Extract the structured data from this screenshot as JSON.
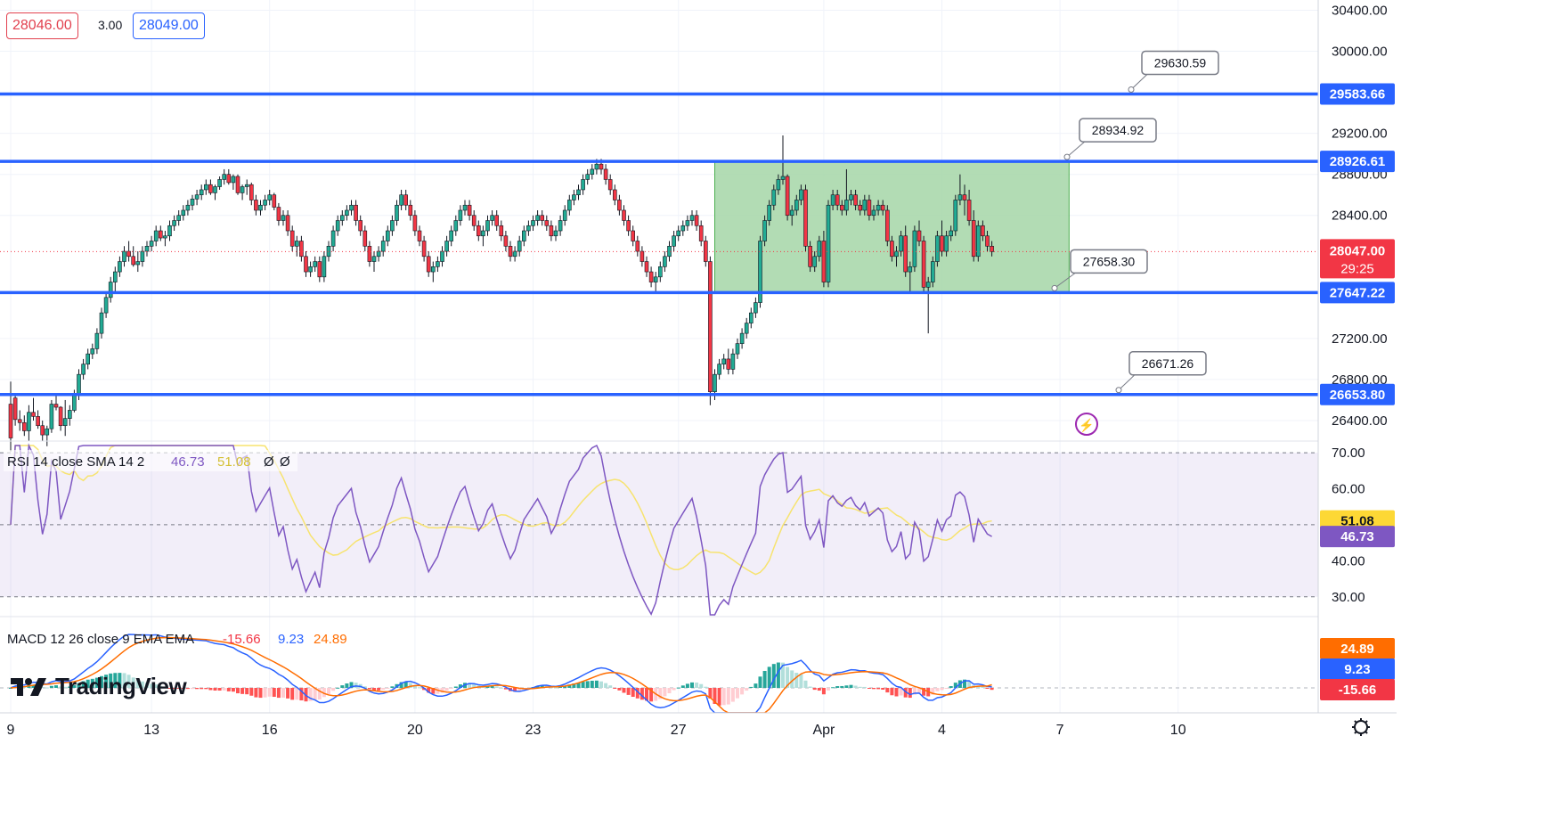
{
  "quote": {
    "bid": "28046.00",
    "spread": "3.00",
    "ask": "28049.00"
  },
  "brand": {
    "name": "TradingView"
  },
  "colors": {
    "up": "#22ab94",
    "down": "#f23645",
    "level": "#2962ff",
    "zone_fill": "#a5d6a7",
    "zone_stroke": "#4caf50",
    "rsi": "#7e57c2",
    "rsi_sma": "#f7e36f",
    "macd": "#2962ff",
    "signal": "#ff6d00"
  },
  "chart_data": {
    "type": "candlestick",
    "price_axis": {
      "range": [
        26200,
        30500
      ],
      "ticks": [
        "30400.00",
        "30000.00",
        "29200.00",
        "28800.00",
        "28400.00",
        "27200.00",
        "26800.00",
        "26400.00"
      ]
    },
    "time_axis": {
      "ticks": [
        "9",
        "13",
        "16",
        "20",
        "23",
        "27",
        "Apr",
        "4",
        "7",
        "10"
      ],
      "tick_index": [
        0,
        31,
        57,
        89,
        115,
        147,
        179,
        205,
        231,
        257
      ]
    },
    "levels": [
      {
        "name": "level-29583",
        "value": 29583.66,
        "axis_label": "29583.66",
        "callout": "29630.59"
      },
      {
        "name": "level-28926",
        "value": 28926.61,
        "axis_label": "28926.61",
        "callout": "28934.92"
      },
      {
        "name": "level-27647",
        "value": 27647.22,
        "axis_label": "27647.22",
        "callout": "27658.30"
      },
      {
        "name": "level-26653",
        "value": 26653.8,
        "axis_label": "26653.80",
        "callout": "26671.26"
      }
    ],
    "range_zone": {
      "from_index": 155,
      "to_index": 233,
      "top": 28926.61,
      "bottom": 27647.22
    },
    "current_price": {
      "value": 28047.0,
      "label": "28047.00",
      "countdown": "29:25"
    },
    "candles": [
      [
        26560,
        26780,
        26100,
        26230
      ],
      [
        26620,
        26650,
        26350,
        26410
      ],
      [
        26410,
        26500,
        26300,
        26380
      ],
      [
        26380,
        26450,
        26250,
        26300
      ],
      [
        26300,
        26550,
        26200,
        26480
      ],
      [
        26480,
        26620,
        26400,
        26440
      ],
      [
        26440,
        26500,
        26320,
        26350
      ],
      [
        26350,
        26400,
        26200,
        26260
      ],
      [
        26260,
        26350,
        26150,
        26320
      ],
      [
        26320,
        26600,
        26280,
        26560
      ],
      [
        26560,
        26650,
        26500,
        26530
      ],
      [
        26530,
        26540,
        26300,
        26350
      ],
      [
        26350,
        26600,
        26250,
        26420
      ],
      [
        26420,
        26550,
        26350,
        26500
      ],
      [
        26500,
        26700,
        26480,
        26650
      ],
      [
        26650,
        26900,
        26600,
        26850
      ],
      [
        26850,
        27000,
        26800,
        26950
      ],
      [
        26950,
        27100,
        26900,
        27050
      ],
      [
        27050,
        27150,
        27000,
        27100
      ],
      [
        27100,
        27300,
        27050,
        27250
      ],
      [
        27250,
        27500,
        27200,
        27450
      ],
      [
        27450,
        27650,
        27400,
        27600
      ],
      [
        27600,
        27800,
        27550,
        27750
      ],
      [
        27750,
        27900,
        27650,
        27850
      ],
      [
        27850,
        28000,
        27800,
        27950
      ],
      [
        27950,
        28100,
        27900,
        28050
      ],
      [
        28050,
        28150,
        27950,
        28000
      ],
      [
        28000,
        28100,
        27900,
        27920
      ],
      [
        27920,
        28050,
        27850,
        27950
      ],
      [
        27950,
        28100,
        27900,
        28050
      ],
      [
        28050,
        28150,
        28000,
        28100
      ],
      [
        28100,
        28200,
        28050,
        28150
      ],
      [
        28150,
        28300,
        28100,
        28250
      ],
      [
        28250,
        28300,
        28150,
        28180
      ],
      [
        28180,
        28250,
        28100,
        28200
      ],
      [
        28200,
        28350,
        28150,
        28300
      ],
      [
        28300,
        28400,
        28250,
        28350
      ],
      [
        28350,
        28450,
        28300,
        28400
      ],
      [
        28400,
        28500,
        28350,
        28450
      ],
      [
        28450,
        28550,
        28400,
        28500
      ],
      [
        28500,
        28600,
        28450,
        28560
      ],
      [
        28560,
        28650,
        28500,
        28600
      ],
      [
        28600,
        28700,
        28550,
        28650
      ],
      [
        28650,
        28750,
        28600,
        28700
      ],
      [
        28700,
        28750,
        28600,
        28620
      ],
      [
        28620,
        28700,
        28550,
        28680
      ],
      [
        28680,
        28780,
        28650,
        28750
      ],
      [
        28750,
        28850,
        28700,
        28800
      ],
      [
        28800,
        28850,
        28700,
        28720
      ],
      [
        28720,
        28800,
        28650,
        28780
      ],
      [
        28780,
        28800,
        28600,
        28620
      ],
      [
        28620,
        28700,
        28550,
        28680
      ],
      [
        28680,
        28750,
        28600,
        28700
      ],
      [
        28700,
        28720,
        28500,
        28550
      ],
      [
        28550,
        28600,
        28400,
        28450
      ],
      [
        28450,
        28550,
        28400,
        28500
      ],
      [
        28500,
        28600,
        28450,
        28550
      ],
      [
        28550,
        28650,
        28500,
        28600
      ],
      [
        28600,
        28620,
        28450,
        28480
      ],
      [
        28480,
        28520,
        28300,
        28350
      ],
      [
        28350,
        28450,
        28300,
        28400
      ],
      [
        28400,
        28450,
        28200,
        28250
      ],
      [
        28250,
        28300,
        28050,
        28100
      ],
      [
        28100,
        28200,
        28000,
        28150
      ],
      [
        28150,
        28200,
        27950,
        28000
      ],
      [
        28000,
        28050,
        27800,
        27850
      ],
      [
        27850,
        27950,
        27800,
        27900
      ],
      [
        27900,
        28000,
        27850,
        27950
      ],
      [
        27950,
        28000,
        27750,
        27800
      ],
      [
        27800,
        28050,
        27750,
        28000
      ],
      [
        28000,
        28150,
        27950,
        28100
      ],
      [
        28100,
        28300,
        28050,
        28250
      ],
      [
        28250,
        28400,
        28200,
        28350
      ],
      [
        28350,
        28450,
        28300,
        28400
      ],
      [
        28400,
        28500,
        28350,
        28450
      ],
      [
        28450,
        28550,
        28400,
        28500
      ],
      [
        28500,
        28550,
        28300,
        28350
      ],
      [
        28350,
        28400,
        28200,
        28250
      ],
      [
        28250,
        28300,
        28050,
        28100
      ],
      [
        28100,
        28150,
        27900,
        27950
      ],
      [
        27950,
        28050,
        27850,
        28000
      ],
      [
        28000,
        28100,
        27950,
        28050
      ],
      [
        28050,
        28200,
        28000,
        28150
      ],
      [
        28150,
        28300,
        28100,
        28250
      ],
      [
        28250,
        28400,
        28200,
        28350
      ],
      [
        28350,
        28550,
        28300,
        28500
      ],
      [
        28500,
        28650,
        28450,
        28600
      ],
      [
        28600,
        28650,
        28450,
        28500
      ],
      [
        28500,
        28550,
        28350,
        28400
      ],
      [
        28400,
        28450,
        28200,
        28250
      ],
      [
        28250,
        28300,
        28100,
        28150
      ],
      [
        28150,
        28200,
        27950,
        28000
      ],
      [
        28000,
        28050,
        27800,
        27850
      ],
      [
        27850,
        27950,
        27750,
        27900
      ],
      [
        27900,
        28000,
        27850,
        27950
      ],
      [
        27950,
        28100,
        27900,
        28050
      ],
      [
        28050,
        28200,
        28000,
        28150
      ],
      [
        28150,
        28300,
        28100,
        28250
      ],
      [
        28250,
        28400,
        28200,
        28350
      ],
      [
        28350,
        28500,
        28300,
        28450
      ],
      [
        28450,
        28550,
        28400,
        28500
      ],
      [
        28500,
        28550,
        28350,
        28400
      ],
      [
        28400,
        28450,
        28250,
        28300
      ],
      [
        28300,
        28350,
        28150,
        28200
      ],
      [
        28200,
        28300,
        28100,
        28250
      ],
      [
        28250,
        28400,
        28200,
        28350
      ],
      [
        28350,
        28450,
        28300,
        28400
      ],
      [
        28400,
        28450,
        28250,
        28300
      ],
      [
        28300,
        28350,
        28150,
        28200
      ],
      [
        28200,
        28250,
        28050,
        28100
      ],
      [
        28100,
        28150,
        27950,
        28000
      ],
      [
        28000,
        28100,
        27950,
        28050
      ],
      [
        28050,
        28200,
        28000,
        28150
      ],
      [
        28150,
        28300,
        28100,
        28250
      ],
      [
        28250,
        28350,
        28200,
        28300
      ],
      [
        28300,
        28400,
        28250,
        28350
      ],
      [
        28350,
        28450,
        28300,
        28400
      ],
      [
        28400,
        28450,
        28300,
        28350
      ],
      [
        28350,
        28400,
        28250,
        28300
      ],
      [
        28300,
        28350,
        28150,
        28200
      ],
      [
        28200,
        28300,
        28150,
        28250
      ],
      [
        28250,
        28400,
        28200,
        28350
      ],
      [
        28350,
        28500,
        28300,
        28450
      ],
      [
        28450,
        28600,
        28400,
        28550
      ],
      [
        28550,
        28650,
        28500,
        28600
      ],
      [
        28600,
        28700,
        28550,
        28650
      ],
      [
        28650,
        28800,
        28600,
        28750
      ],
      [
        28750,
        28850,
        28700,
        28800
      ],
      [
        28800,
        28900,
        28750,
        28850
      ],
      [
        28850,
        28950,
        28800,
        28900
      ],
      [
        28900,
        28950,
        28800,
        28850
      ],
      [
        28850,
        28900,
        28700,
        28750
      ],
      [
        28750,
        28800,
        28600,
        28650
      ],
      [
        28650,
        28700,
        28500,
        28550
      ],
      [
        28550,
        28600,
        28400,
        28450
      ],
      [
        28450,
        28500,
        28300,
        28350
      ],
      [
        28350,
        28400,
        28200,
        28250
      ],
      [
        28250,
        28300,
        28100,
        28150
      ],
      [
        28150,
        28200,
        28000,
        28050
      ],
      [
        28050,
        28100,
        27900,
        27950
      ],
      [
        27950,
        28000,
        27800,
        27850
      ],
      [
        27850,
        27900,
        27700,
        27750
      ],
      [
        27750,
        27850,
        27650,
        27800
      ],
      [
        27800,
        27950,
        27750,
        27900
      ],
      [
        27900,
        28050,
        27850,
        28000
      ],
      [
        28000,
        28150,
        27950,
        28100
      ],
      [
        28100,
        28250,
        28050,
        28200
      ],
      [
        28200,
        28300,
        28150,
        28250
      ],
      [
        28250,
        28350,
        28200,
        28300
      ],
      [
        28300,
        28400,
        28250,
        28350
      ],
      [
        28350,
        28450,
        28300,
        28400
      ],
      [
        28400,
        28450,
        28250,
        28300
      ],
      [
        28300,
        28350,
        28100,
        28150
      ],
      [
        28150,
        28200,
        27900,
        27950
      ],
      [
        27950,
        28000,
        26550,
        26680
      ],
      [
        26680,
        26900,
        26600,
        26850
      ],
      [
        26850,
        27000,
        26800,
        26950
      ],
      [
        26950,
        27050,
        26900,
        27000
      ],
      [
        27000,
        27100,
        26850,
        26900
      ],
      [
        26900,
        27100,
        26850,
        27050
      ],
      [
        27050,
        27200,
        27000,
        27150
      ],
      [
        27150,
        27300,
        27100,
        27250
      ],
      [
        27250,
        27400,
        27200,
        27350
      ],
      [
        27350,
        27500,
        27300,
        27450
      ],
      [
        27450,
        27600,
        27400,
        27550
      ],
      [
        27550,
        28200,
        27500,
        28150
      ],
      [
        28150,
        28400,
        28100,
        28350
      ],
      [
        28350,
        28550,
        28300,
        28500
      ],
      [
        28500,
        28700,
        28450,
        28650
      ],
      [
        28650,
        28800,
        28600,
        28750
      ],
      [
        28750,
        29180,
        28700,
        28780
      ],
      [
        28780,
        28800,
        28350,
        28400
      ],
      [
        28400,
        28500,
        28300,
        28450
      ],
      [
        28450,
        28600,
        28400,
        28550
      ],
      [
        28550,
        28700,
        28500,
        28650
      ],
      [
        28650,
        28700,
        28050,
        28100
      ],
      [
        28100,
        28150,
        27850,
        27900
      ],
      [
        27900,
        28050,
        27850,
        28000
      ],
      [
        28000,
        28200,
        27950,
        28150
      ],
      [
        28150,
        28250,
        27700,
        27750
      ],
      [
        27750,
        28550,
        27700,
        28500
      ],
      [
        28500,
        28650,
        28450,
        28600
      ],
      [
        28600,
        28650,
        28450,
        28500
      ],
      [
        28500,
        28550,
        28400,
        28450
      ],
      [
        28450,
        28850,
        28400,
        28550
      ],
      [
        28550,
        28650,
        28500,
        28600
      ],
      [
        28600,
        28650,
        28450,
        28500
      ],
      [
        28500,
        28550,
        28400,
        28450
      ],
      [
        28450,
        28600,
        28400,
        28550
      ],
      [
        28550,
        28600,
        28350,
        28400
      ],
      [
        28400,
        28500,
        28350,
        28450
      ],
      [
        28450,
        28550,
        28400,
        28500
      ],
      [
        28500,
        28550,
        28400,
        28450
      ],
      [
        28450,
        28500,
        28100,
        28150
      ],
      [
        28150,
        28200,
        27950,
        28000
      ],
      [
        28000,
        28100,
        27900,
        28050
      ],
      [
        28050,
        28250,
        28000,
        28200
      ],
      [
        28200,
        28300,
        27800,
        27850
      ],
      [
        27850,
        27950,
        27650,
        27900
      ],
      [
        27900,
        28300,
        27850,
        28250
      ],
      [
        28250,
        28350,
        28100,
        28150
      ],
      [
        28150,
        28200,
        27650,
        27700
      ],
      [
        27700,
        27800,
        27250,
        27750
      ],
      [
        27750,
        28000,
        27700,
        27950
      ],
      [
        27950,
        28250,
        27900,
        28200
      ],
      [
        28200,
        28350,
        28000,
        28050
      ],
      [
        28050,
        28250,
        28000,
        28200
      ],
      [
        28200,
        28300,
        28150,
        28250
      ],
      [
        28250,
        28600,
        28200,
        28550
      ],
      [
        28550,
        28800,
        28500,
        28600
      ],
      [
        28600,
        28700,
        28400,
        28550
      ],
      [
        28550,
        28650,
        28300,
        28350
      ],
      [
        28350,
        28450,
        27950,
        28000
      ],
      [
        28000,
        28350,
        27950,
        28300
      ],
      [
        28300,
        28350,
        28150,
        28200
      ],
      [
        28200,
        28250,
        28050,
        28100
      ],
      [
        28100,
        28150,
        28000,
        28047
      ]
    ],
    "rsi": {
      "label": "RSI 14 close SMA 14 2",
      "value": 46.73,
      "sma": 51.08,
      "extra": [
        "Ø",
        "Ø"
      ],
      "value_label": "46.73",
      "sma_label": "51.08",
      "range": [
        25,
        72
      ],
      "ticks": [
        "70.00",
        "60.00",
        "40.00",
        "30.00"
      ],
      "band": [
        30,
        70
      ]
    },
    "macd": {
      "label": "MACD 12 26 close 9 EMA EMA",
      "hist": -15.66,
      "macd": 9.23,
      "signal": 24.89,
      "hist_label": "-15.66",
      "macd_label": "9.23",
      "signal_label": "24.89"
    }
  }
}
